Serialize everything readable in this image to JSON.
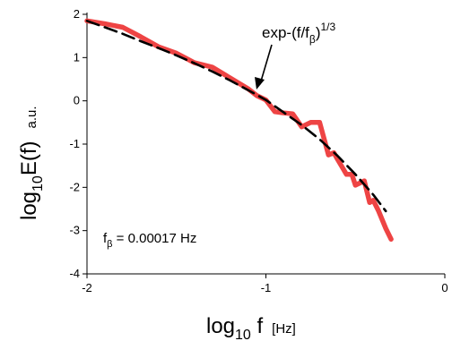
{
  "chart_data": {
    "type": "line",
    "xlabel": {
      "main": "log",
      "sub": "10",
      "var": " f",
      "unit": "[Hz]"
    },
    "ylabel": {
      "main": "log",
      "sub": "10",
      "var": "E(f)",
      "unit": "a.u."
    },
    "xlim": [
      -2,
      0
    ],
    "ylim": [
      -4,
      2
    ],
    "xticks": [
      -2,
      -1,
      0
    ],
    "xtick_labels": [
      "-2",
      "-1",
      "0"
    ],
    "yticks": [
      2,
      1,
      0,
      -1,
      -2,
      -3,
      -4
    ],
    "ytick_labels": [
      "2",
      "1",
      "0",
      "-1",
      "-2",
      "-3",
      "-4"
    ],
    "grid": false,
    "series": [
      {
        "kind": "data",
        "color": "#ee4444",
        "x": [
          -2.0,
          -1.9,
          -1.8,
          -1.7,
          -1.6,
          -1.5,
          -1.4,
          -1.3,
          -1.2,
          -1.1,
          -1.05,
          -1.0,
          -0.95,
          -0.9,
          -0.85,
          -0.8,
          -0.75,
          -0.72,
          -0.7,
          -0.65,
          -0.62,
          -0.6,
          -0.55,
          -0.52,
          -0.5,
          -0.45,
          -0.42,
          -0.4,
          -0.37,
          -0.33,
          -0.3
        ],
        "y": [
          1.85,
          1.78,
          1.7,
          1.48,
          1.25,
          1.1,
          0.88,
          0.78,
          0.53,
          0.28,
          0.12,
          0.02,
          -0.25,
          -0.28,
          -0.3,
          -0.6,
          -0.5,
          -0.5,
          -0.5,
          -1.25,
          -1.2,
          -1.35,
          -1.7,
          -1.7,
          -1.95,
          -1.85,
          -2.35,
          -2.3,
          -2.55,
          -2.95,
          -3.2
        ]
      },
      {
        "kind": "fit",
        "color": "#000000",
        "dashed": true,
        "x": [
          -2.0,
          -1.9,
          -1.8,
          -1.7,
          -1.6,
          -1.5,
          -1.4,
          -1.3,
          -1.2,
          -1.1,
          -1.0,
          -0.9,
          -0.8,
          -0.7,
          -0.6,
          -0.5,
          -0.4,
          -0.33
        ],
        "y": [
          1.85,
          1.7,
          1.55,
          1.38,
          1.22,
          1.05,
          0.87,
          0.68,
          0.47,
          0.25,
          0.02,
          -0.27,
          -0.56,
          -0.89,
          -1.27,
          -1.7,
          -2.17,
          -2.55
        ]
      }
    ],
    "annotations": {
      "fit_label": {
        "base": "exp-(f/f",
        "sub": "β",
        "close": ")",
        "sup": "1/3"
      },
      "parameter": {
        "base": "f",
        "sub": "β",
        "text": " = 0.00017  Hz"
      }
    }
  }
}
